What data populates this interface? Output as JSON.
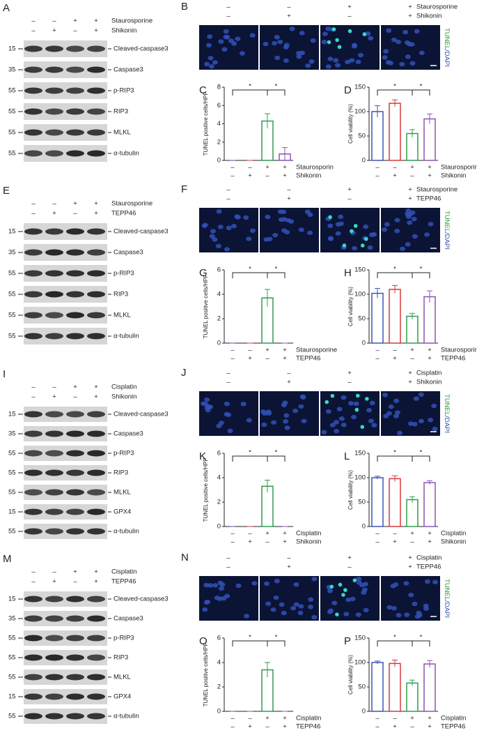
{
  "panels": [
    {
      "blot": {
        "letter": "A",
        "treatments": [
          {
            "name": "Staurosporine",
            "signs": [
              "–",
              "–",
              "+",
              "+"
            ]
          },
          {
            "name": "Shikonin",
            "signs": [
              "–",
              "+",
              "–",
              "+"
            ]
          }
        ],
        "bands": [
          {
            "mw": "15",
            "label": "Cleaved-caspase3"
          },
          {
            "mw": "35",
            "label": "Caspase3"
          },
          {
            "mw": "55",
            "label": "p-RIP3"
          },
          {
            "mw": "55",
            "label": "RIP3"
          },
          {
            "mw": "55",
            "label": "MLKL"
          },
          {
            "mw": "55",
            "label": "α-tubulin"
          }
        ]
      },
      "images": {
        "letter": "B",
        "treatments": [
          {
            "name": "Staurosporine",
            "signs": [
              "–",
              "–",
              "+",
              "+"
            ]
          },
          {
            "name": "Shikonin",
            "signs": [
              "–",
              "+",
              "–",
              "+"
            ]
          }
        ],
        "stain": [
          "TUNEL",
          "/DAPI"
        ]
      }
    },
    {
      "blot": {
        "letter": "E",
        "treatments": [
          {
            "name": "Staurosporine",
            "signs": [
              "–",
              "–",
              "+",
              "+"
            ]
          },
          {
            "name": "TEPP46",
            "signs": [
              "–",
              "+",
              "–",
              "+"
            ]
          }
        ],
        "bands": [
          {
            "mw": "15",
            "label": "Cleaved-caspase3"
          },
          {
            "mw": "35",
            "label": "Caspase3"
          },
          {
            "mw": "55",
            "label": "p-RIP3"
          },
          {
            "mw": "55",
            "label": "RIP3"
          },
          {
            "mw": "55",
            "label": "MLKL"
          },
          {
            "mw": "55",
            "label": "α-tubulin"
          }
        ]
      },
      "images": {
        "letter": "F",
        "treatments": [
          {
            "name": "Staurosporine",
            "signs": [
              "–",
              "–",
              "+",
              "+"
            ]
          },
          {
            "name": "TEPP46",
            "signs": [
              "–",
              "+",
              "–",
              "+"
            ]
          }
        ],
        "stain": [
          "TUNEL",
          "/DAPI"
        ]
      }
    },
    {
      "blot": {
        "letter": "I",
        "treatments": [
          {
            "name": "Cisplatin",
            "signs": [
              "–",
              "–",
              "+",
              "+"
            ]
          },
          {
            "name": "Shikonin",
            "signs": [
              "–",
              "+",
              "–",
              "+"
            ]
          }
        ],
        "bands": [
          {
            "mw": "15",
            "label": "Cleaved-caspase3"
          },
          {
            "mw": "35",
            "label": "Caspase3"
          },
          {
            "mw": "55",
            "label": "p-RIP3"
          },
          {
            "mw": "55",
            "label": "RIP3"
          },
          {
            "mw": "55",
            "label": "MLKL"
          },
          {
            "mw": "15",
            "label": "GPX4"
          },
          {
            "mw": "55",
            "label": "α-tubulin"
          }
        ]
      },
      "images": {
        "letter": "J",
        "treatments": [
          {
            "name": "Cisplatin",
            "signs": [
              "–",
              "–",
              "+",
              "+"
            ]
          },
          {
            "name": "Shikonin",
            "signs": [
              "–",
              "+",
              "–",
              "+"
            ]
          }
        ],
        "stain": [
          "TUNEL",
          "/DAPI"
        ]
      }
    },
    {
      "blot": {
        "letter": "M",
        "treatments": [
          {
            "name": "Cisplatin",
            "signs": [
              "–",
              "–",
              "+",
              "+"
            ]
          },
          {
            "name": "TEPP46",
            "signs": [
              "–",
              "+",
              "–",
              "+"
            ]
          }
        ],
        "bands": [
          {
            "mw": "15",
            "label": "Cleaved-caspase3"
          },
          {
            "mw": "35",
            "label": "Caspase3"
          },
          {
            "mw": "55",
            "label": "p-RIP3"
          },
          {
            "mw": "55",
            "label": "RIP3"
          },
          {
            "mw": "55",
            "label": "MLKL"
          },
          {
            "mw": "15",
            "label": "GPX4"
          },
          {
            "mw": "55",
            "label": "α-tubulin"
          }
        ]
      },
      "images": {
        "letter": "N",
        "treatments": [
          {
            "name": "Cisplatin",
            "signs": [
              "–",
              "–",
              "+",
              "+"
            ]
          },
          {
            "name": "TEPP46",
            "signs": [
              "–",
              "+",
              "–",
              "+"
            ]
          }
        ],
        "stain": [
          "TUNEL",
          "/DAPI"
        ]
      }
    }
  ],
  "chart_data": [
    {
      "type": "bar",
      "letter": "C",
      "ylabel": "TUNEL positive cells/HPF",
      "values": [
        0,
        0,
        4.3,
        0.7
      ],
      "errors": [
        0,
        0,
        0.8,
        0.7
      ],
      "colors": [
        "#3b56b5",
        "#d8383a",
        "#2e9e4e",
        "#8d52b5"
      ],
      "ylim": [
        0,
        8
      ],
      "yticks": [
        0,
        2,
        4,
        6,
        8
      ],
      "significance": [
        "*",
        "*"
      ],
      "treatments": [
        {
          "name": "Staurosporin",
          "signs": [
            "–",
            "–",
            "+",
            "+"
          ]
        },
        {
          "name": "Shikonin",
          "signs": [
            "–",
            "+",
            "–",
            "+"
          ]
        }
      ]
    },
    {
      "type": "bar",
      "letter": "D",
      "ylabel": "Cell viability (%)",
      "values": [
        100,
        117,
        55,
        85
      ],
      "errors": [
        12,
        7,
        8,
        10
      ],
      "colors": [
        "#3b56b5",
        "#d8383a",
        "#2e9e4e",
        "#8d52b5"
      ],
      "ylim": [
        0,
        150
      ],
      "yticks": [
        0,
        50,
        100,
        150
      ],
      "significance": [
        "*",
        "*"
      ],
      "treatments": [
        {
          "name": "Staurosporine",
          "signs": [
            "–",
            "–",
            "+",
            "+"
          ]
        },
        {
          "name": "Shikonin",
          "signs": [
            "–",
            "+",
            "–",
            "+"
          ]
        }
      ]
    },
    {
      "type": "bar",
      "letter": "G",
      "ylabel": "TUNEL positive cells/HPF",
      "values": [
        0,
        0,
        3.7,
        0
      ],
      "errors": [
        0,
        0,
        0.7,
        0
      ],
      "colors": [
        "#3b56b5",
        "#d8383a",
        "#2e9e4e",
        "#8d52b5"
      ],
      "ylim": [
        0,
        6
      ],
      "yticks": [
        0,
        2,
        4,
        6
      ],
      "significance": [
        "*",
        "*"
      ],
      "treatments": [
        {
          "name": "Staurosporine",
          "signs": [
            "–",
            "–",
            "+",
            "+"
          ]
        },
        {
          "name": "TEPP46",
          "signs": [
            "–",
            "+",
            "–",
            "+"
          ]
        }
      ]
    },
    {
      "type": "bar",
      "letter": "H",
      "ylabel": "Cell viability (%)",
      "values": [
        102,
        110,
        55,
        95
      ],
      "errors": [
        10,
        8,
        6,
        12
      ],
      "colors": [
        "#3b56b5",
        "#d8383a",
        "#2e9e4e",
        "#8d52b5"
      ],
      "ylim": [
        0,
        150
      ],
      "yticks": [
        0,
        50,
        100,
        150
      ],
      "significance": [
        "*",
        "*"
      ],
      "treatments": [
        {
          "name": "Staurosporine",
          "signs": [
            "–",
            "–",
            "+",
            "+"
          ]
        },
        {
          "name": "TEPP46",
          "signs": [
            "–",
            "+",
            "–",
            "+"
          ]
        }
      ]
    },
    {
      "type": "bar",
      "letter": "K",
      "ylabel": "TUNEL positive cells/HPF",
      "values": [
        0,
        0,
        3.3,
        0
      ],
      "errors": [
        0,
        0,
        0.5,
        0
      ],
      "colors": [
        "#3b56b5",
        "#d8383a",
        "#2e9e4e",
        "#8d52b5"
      ],
      "ylim": [
        0,
        6
      ],
      "yticks": [
        0,
        2,
        4,
        6
      ],
      "significance": [
        "*",
        "*"
      ],
      "treatments": [
        {
          "name": "Cisplatin",
          "signs": [
            "–",
            "–",
            "+",
            "+"
          ]
        },
        {
          "name": "Shikonin",
          "signs": [
            "–",
            "+",
            "–",
            "+"
          ]
        }
      ]
    },
    {
      "type": "bar",
      "letter": "L",
      "ylabel": "Cell viability (%)",
      "values": [
        100,
        98,
        55,
        90
      ],
      "errors": [
        3,
        6,
        6,
        4
      ],
      "colors": [
        "#3b56b5",
        "#d8383a",
        "#2e9e4e",
        "#8d52b5"
      ],
      "ylim": [
        0,
        150
      ],
      "yticks": [
        0,
        50,
        100,
        150
      ],
      "significance": [
        "*",
        "*"
      ],
      "treatments": [
        {
          "name": "Cisplatin",
          "signs": [
            "–",
            "–",
            "+",
            "+"
          ]
        },
        {
          "name": "Shikonin",
          "signs": [
            "–",
            "+",
            "–",
            "+"
          ]
        }
      ]
    },
    {
      "type": "bar",
      "letter": "O",
      "ylabel": "TUNEL positive cells/HPF",
      "values": [
        0,
        0,
        3.4,
        0
      ],
      "errors": [
        0,
        0,
        0.6,
        0
      ],
      "colors": [
        "#3b56b5",
        "#d8383a",
        "#2e9e4e",
        "#8d52b5"
      ],
      "ylim": [
        0,
        6
      ],
      "yticks": [
        0,
        2,
        4,
        6
      ],
      "significance": [
        "*",
        "*"
      ],
      "treatments": [
        {
          "name": "Cisplatin",
          "signs": [
            "–",
            "–",
            "+",
            "+"
          ]
        },
        {
          "name": "TEPP46",
          "signs": [
            "–",
            "+",
            "–",
            "+"
          ]
        }
      ]
    },
    {
      "type": "bar",
      "letter": "P",
      "ylabel": "Cell viability (%)",
      "values": [
        100,
        98,
        58,
        97
      ],
      "errors": [
        3,
        7,
        6,
        7
      ],
      "colors": [
        "#3b56b5",
        "#d8383a",
        "#2e9e4e",
        "#8d52b5"
      ],
      "ylim": [
        0,
        150
      ],
      "yticks": [
        0,
        50,
        100,
        150
      ],
      "significance": [
        "*",
        "*"
      ],
      "treatments": [
        {
          "name": "Cisplatin",
          "signs": [
            "–",
            "–",
            "+",
            "+"
          ]
        },
        {
          "name": "TEPP46",
          "signs": [
            "–",
            "+",
            "–",
            "+"
          ]
        }
      ]
    }
  ]
}
